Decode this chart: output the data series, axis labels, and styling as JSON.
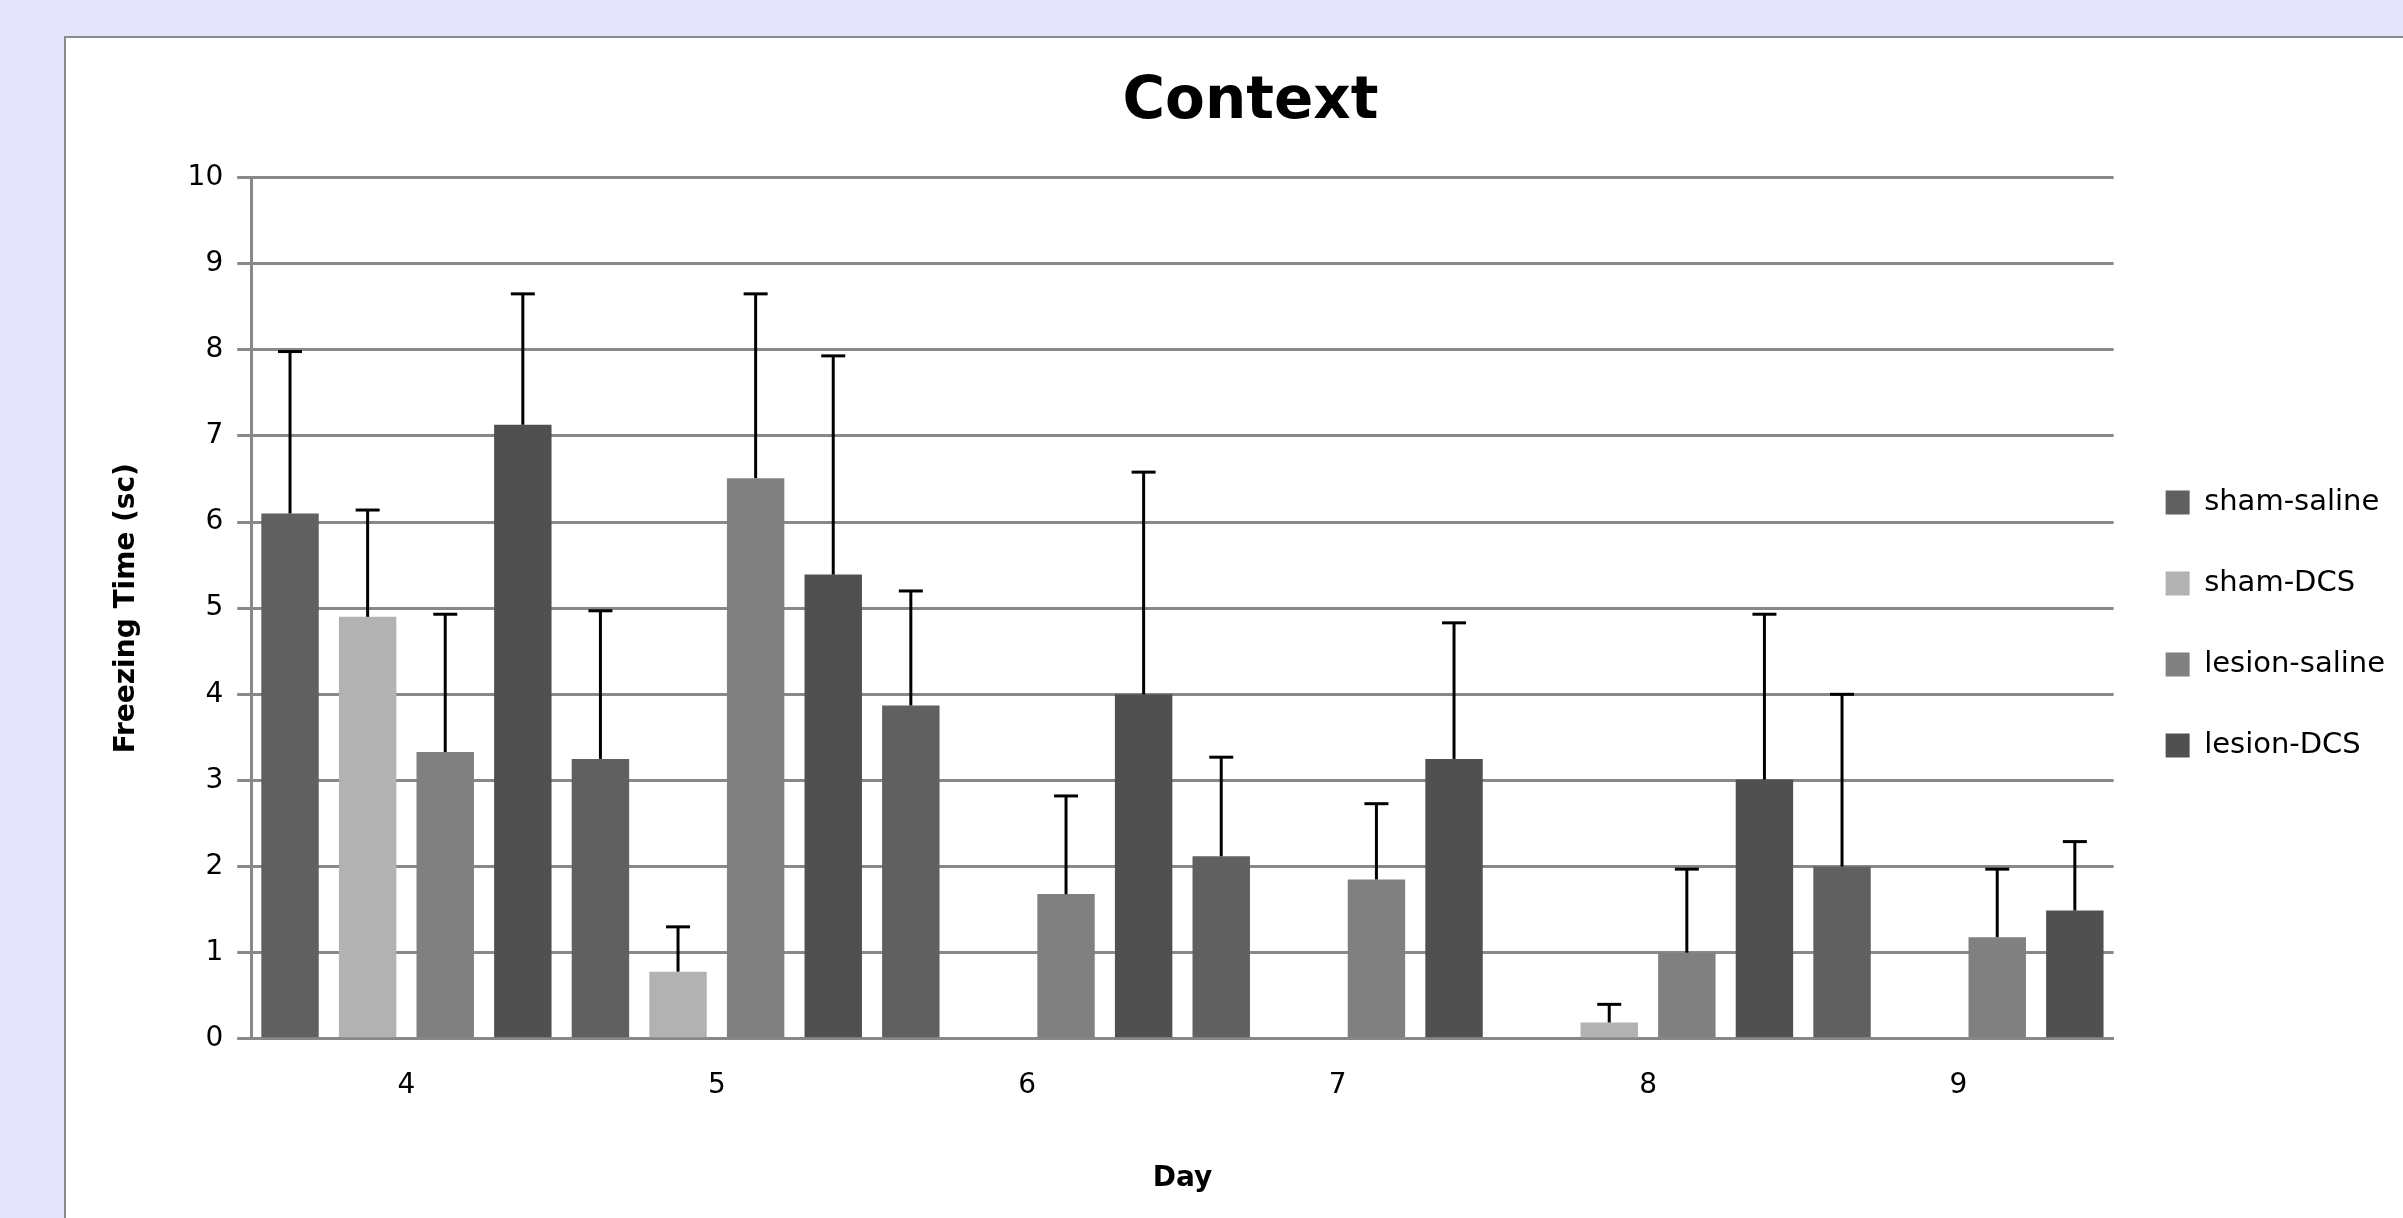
{
  "chart_data": {
    "type": "bar",
    "title": "Context",
    "xlabel": "Day",
    "ylabel": "Freezing Time (sc)",
    "categories": [
      "4",
      "5",
      "6",
      "7",
      "8",
      "9"
    ],
    "series": [
      {
        "name": "sham-saline",
        "color": "#606060",
        "values": [
          6.1,
          3.25,
          3.87,
          2.12,
          0,
          2.0
        ],
        "errors": [
          [
            6.1,
            7.98
          ],
          [
            3.25,
            4.97
          ],
          [
            3.87,
            5.2
          ],
          [
            2.12,
            3.27
          ],
          null,
          [
            2.0,
            4.0
          ]
        ]
      },
      {
        "name": "sham-DCS",
        "color": "#b2b2b2",
        "values": [
          4.9,
          0.78,
          0,
          0,
          0.19,
          0
        ],
        "errors": [
          [
            4.9,
            6.14
          ],
          [
            0.78,
            1.3
          ],
          null,
          null,
          [
            0.19,
            0.4
          ],
          null
        ]
      },
      {
        "name": "lesion-saline",
        "color": "#808080",
        "values": [
          3.33,
          6.51,
          1.68,
          1.85,
          1.0,
          1.18
        ],
        "errors": [
          [
            3.33,
            4.93
          ],
          [
            6.51,
            8.65
          ],
          [
            1.68,
            2.82
          ],
          [
            1.85,
            2.73
          ],
          [
            1.0,
            1.97
          ],
          [
            1.18,
            1.97
          ]
        ]
      },
      {
        "name": "lesion-DCS",
        "color": "#505050",
        "values": [
          7.13,
          5.39,
          4.0,
          3.25,
          3.01,
          1.49
        ],
        "errors": [
          [
            7.13,
            8.65
          ],
          [
            5.39,
            7.93
          ],
          [
            4.0,
            6.58
          ],
          [
            3.25,
            4.83
          ],
          [
            3.01,
            4.93
          ],
          [
            1.49,
            2.29
          ]
        ]
      }
    ],
    "ylim": [
      0,
      10
    ],
    "yticks": [
      0,
      1,
      2,
      3,
      4,
      5,
      6,
      7,
      8,
      9,
      10
    ],
    "grid": "y",
    "legend": "right"
  }
}
